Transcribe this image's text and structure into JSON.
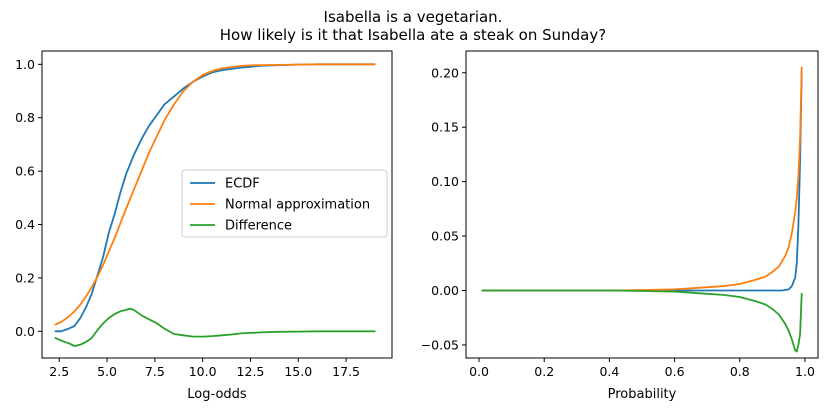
{
  "figure": {
    "title_line1": "Isabella is a vegetarian.",
    "title_line2": "How likely is it that Isabella ate a steak on Sunday?"
  },
  "colors": {
    "ecdf": "#1f77b4",
    "normal": "#ff7f0e",
    "difference": "#2ca02c"
  },
  "chart_data": [
    {
      "type": "line",
      "xlabel": "Log-odds",
      "ylabel": "",
      "xlim": [
        1.6,
        19.9
      ],
      "ylim": [
        -0.1,
        1.05
      ],
      "xticks": [
        2.5,
        5.0,
        7.5,
        10.0,
        12.5,
        15.0,
        17.5
      ],
      "xtick_labels": [
        "2.5",
        "5.0",
        "7.5",
        "10.0",
        "12.5",
        "15.0",
        "17.5"
      ],
      "yticks": [
        0.0,
        0.2,
        0.4,
        0.6,
        0.8,
        1.0
      ],
      "ytick_labels": [
        "0.0",
        "0.2",
        "0.4",
        "0.6",
        "0.8",
        "1.0"
      ],
      "legend_position": "center-right",
      "series": [
        {
          "name": "ECDF",
          "color": "#1f77b4",
          "x": [
            2.3,
            2.6,
            3.0,
            3.3,
            3.6,
            3.9,
            4.2,
            4.5,
            4.8,
            5.1,
            5.4,
            5.7,
            6.0,
            6.4,
            6.8,
            7.2,
            7.6,
            8.0,
            8.5,
            9.0,
            9.5,
            10.0,
            10.5,
            11.0,
            11.5,
            12.0,
            12.5,
            13.0,
            14.0,
            15.0,
            16.0,
            17.0,
            19.0
          ],
          "y": [
            0.0,
            0.0,
            0.01,
            0.02,
            0.05,
            0.09,
            0.14,
            0.21,
            0.28,
            0.37,
            0.44,
            0.52,
            0.59,
            0.66,
            0.72,
            0.77,
            0.81,
            0.85,
            0.88,
            0.91,
            0.935,
            0.955,
            0.97,
            0.978,
            0.983,
            0.988,
            0.991,
            0.994,
            0.997,
            0.999,
            1.0,
            1.0,
            1.0
          ]
        },
        {
          "name": "Normal approximation",
          "color": "#ff7f0e",
          "x": [
            2.3,
            2.6,
            3.0,
            3.3,
            3.6,
            3.9,
            4.2,
            4.5,
            4.8,
            5.1,
            5.4,
            5.7,
            6.0,
            6.4,
            6.8,
            7.2,
            7.6,
            8.0,
            8.5,
            9.0,
            9.5,
            10.0,
            10.5,
            11.0,
            11.5,
            12.0,
            12.5,
            13.0,
            14.0,
            15.0,
            16.0,
            17.0,
            19.0
          ],
          "y": [
            0.025,
            0.035,
            0.055,
            0.075,
            0.1,
            0.13,
            0.165,
            0.205,
            0.25,
            0.3,
            0.35,
            0.405,
            0.46,
            0.53,
            0.6,
            0.67,
            0.73,
            0.79,
            0.85,
            0.9,
            0.935,
            0.96,
            0.975,
            0.985,
            0.99,
            0.994,
            0.996,
            0.997,
            0.998,
            0.999,
            1.0,
            1.0,
            1.0
          ]
        },
        {
          "name": "Difference",
          "color": "#2ca02c",
          "x": [
            2.3,
            2.6,
            3.0,
            3.3,
            3.6,
            3.9,
            4.2,
            4.5,
            4.8,
            5.1,
            5.4,
            5.7,
            6.0,
            6.2,
            6.4,
            6.8,
            7.2,
            7.6,
            8.0,
            8.5,
            9.0,
            9.5,
            10.0,
            10.5,
            11.0,
            11.5,
            12.0,
            12.5,
            13.0,
            14.0,
            15.0,
            16.0,
            17.0,
            19.0
          ],
          "y": [
            -0.025,
            -0.035,
            -0.045,
            -0.055,
            -0.05,
            -0.04,
            -0.025,
            0.005,
            0.03,
            0.05,
            0.065,
            0.075,
            0.08,
            0.085,
            0.08,
            0.06,
            0.045,
            0.03,
            0.01,
            -0.01,
            -0.015,
            -0.02,
            -0.02,
            -0.018,
            -0.015,
            -0.012,
            -0.008,
            -0.006,
            -0.004,
            -0.002,
            -0.001,
            0.0,
            0.0,
            0.0
          ]
        }
      ]
    },
    {
      "type": "line",
      "xlabel": "Probability",
      "ylabel": "",
      "xlim": [
        -0.04,
        1.04
      ],
      "ylim": [
        -0.062,
        0.22
      ],
      "xticks": [
        0.0,
        0.2,
        0.4,
        0.6,
        0.8,
        1.0
      ],
      "xtick_labels": [
        "0.0",
        "0.2",
        "0.4",
        "0.6",
        "0.8",
        "1.0"
      ],
      "yticks": [
        -0.05,
        0.0,
        0.05,
        0.1,
        0.15,
        0.2
      ],
      "ytick_labels": [
        "−0.05",
        "0.00",
        "0.05",
        "0.10",
        "0.15",
        "0.20"
      ],
      "series": [
        {
          "name": "ECDF",
          "color": "#1f77b4",
          "x": [
            0.01,
            0.1,
            0.2,
            0.3,
            0.4,
            0.5,
            0.6,
            0.7,
            0.8,
            0.85,
            0.9,
            0.93,
            0.95,
            0.96,
            0.97,
            0.975,
            0.98,
            0.985,
            0.99
          ],
          "y": [
            0.0,
            0.0,
            0.0,
            0.0,
            0.0,
            0.0,
            0.0,
            0.0,
            0.0,
            0.0,
            0.0,
            0.0,
            0.001,
            0.004,
            0.012,
            0.025,
            0.06,
            0.12,
            0.2
          ]
        },
        {
          "name": "Normal approximation",
          "color": "#ff7f0e",
          "x": [
            0.01,
            0.1,
            0.2,
            0.3,
            0.4,
            0.5,
            0.6,
            0.65,
            0.7,
            0.75,
            0.8,
            0.85,
            0.88,
            0.9,
            0.92,
            0.94,
            0.95,
            0.96,
            0.97,
            0.975,
            0.98,
            0.985,
            0.99
          ],
          "y": [
            0.0,
            0.0,
            0.0,
            0.0,
            0.0,
            0.0005,
            0.001,
            0.002,
            0.003,
            0.004,
            0.006,
            0.01,
            0.013,
            0.017,
            0.022,
            0.032,
            0.04,
            0.053,
            0.072,
            0.085,
            0.105,
            0.14,
            0.205
          ]
        },
        {
          "name": "Difference",
          "color": "#2ca02c",
          "x": [
            0.01,
            0.1,
            0.2,
            0.3,
            0.4,
            0.5,
            0.6,
            0.65,
            0.7,
            0.75,
            0.8,
            0.85,
            0.88,
            0.9,
            0.92,
            0.94,
            0.95,
            0.96,
            0.97,
            0.975,
            0.98,
            0.985,
            0.99
          ],
          "y": [
            0.0,
            0.0,
            0.0,
            0.0,
            0.0,
            -0.0005,
            -0.001,
            -0.002,
            -0.003,
            -0.004,
            -0.006,
            -0.01,
            -0.013,
            -0.017,
            -0.022,
            -0.031,
            -0.037,
            -0.045,
            -0.055,
            -0.056,
            -0.05,
            -0.04,
            -0.003
          ]
        }
      ]
    }
  ]
}
